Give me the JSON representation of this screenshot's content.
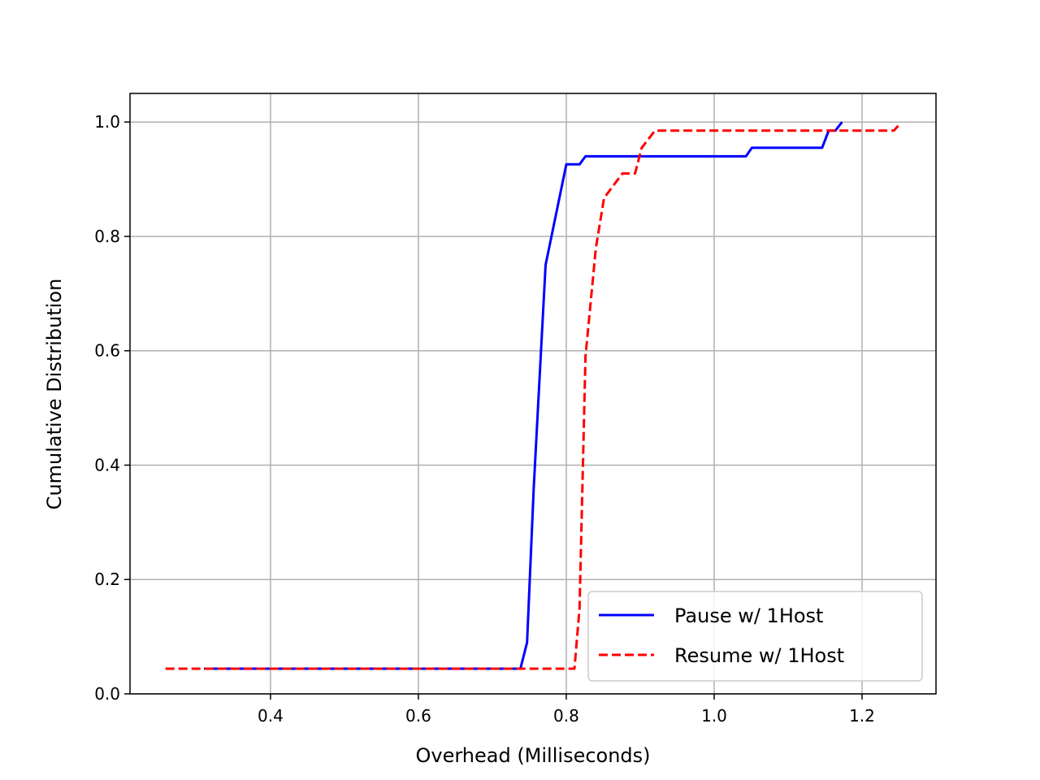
{
  "chart_data": {
    "type": "line",
    "title": "",
    "xlabel": "Overhead (Milliseconds)",
    "ylabel": "Cumulative Distribution",
    "xlim": [
      0.21,
      1.3
    ],
    "ylim": [
      0.0,
      1.05
    ],
    "xticks": [
      0.4,
      0.6,
      0.8,
      1.0,
      1.2
    ],
    "xtick_labels": [
      "0.4",
      "0.6",
      "0.8",
      "1.0",
      "1.2"
    ],
    "yticks": [
      0.0,
      0.2,
      0.4,
      0.6,
      0.8,
      1.0
    ],
    "ytick_labels": [
      "0.0",
      "0.2",
      "0.4",
      "0.6",
      "0.8",
      "1.0"
    ],
    "grid": true,
    "legend_position": "lower-right",
    "series": [
      {
        "name": "Pause w/ 1Host",
        "color": "#0000ff",
        "style": "solid",
        "points": [
          [
            0.31,
            0.044
          ],
          [
            0.738,
            0.044
          ],
          [
            0.747,
            0.09
          ],
          [
            0.756,
            0.36
          ],
          [
            0.772,
            0.75
          ],
          [
            0.8,
            0.926
          ],
          [
            0.818,
            0.926
          ],
          [
            0.826,
            0.94
          ],
          [
            1.043,
            0.94
          ],
          [
            1.051,
            0.955
          ],
          [
            1.146,
            0.955
          ],
          [
            1.155,
            0.985
          ],
          [
            1.164,
            0.985
          ],
          [
            1.173,
            1.0
          ]
        ]
      },
      {
        "name": "Resume w/ 1Host",
        "color": "#ff0000",
        "style": "dashed",
        "points": [
          [
            0.258,
            0.044
          ],
          [
            0.811,
            0.044
          ],
          [
            0.818,
            0.15
          ],
          [
            0.826,
            0.59
          ],
          [
            0.84,
            0.78
          ],
          [
            0.851,
            0.867
          ],
          [
            0.876,
            0.91
          ],
          [
            0.893,
            0.91
          ],
          [
            0.902,
            0.955
          ],
          [
            0.92,
            0.985
          ],
          [
            1.243,
            0.985
          ],
          [
            1.25,
            0.995
          ]
        ]
      }
    ]
  }
}
